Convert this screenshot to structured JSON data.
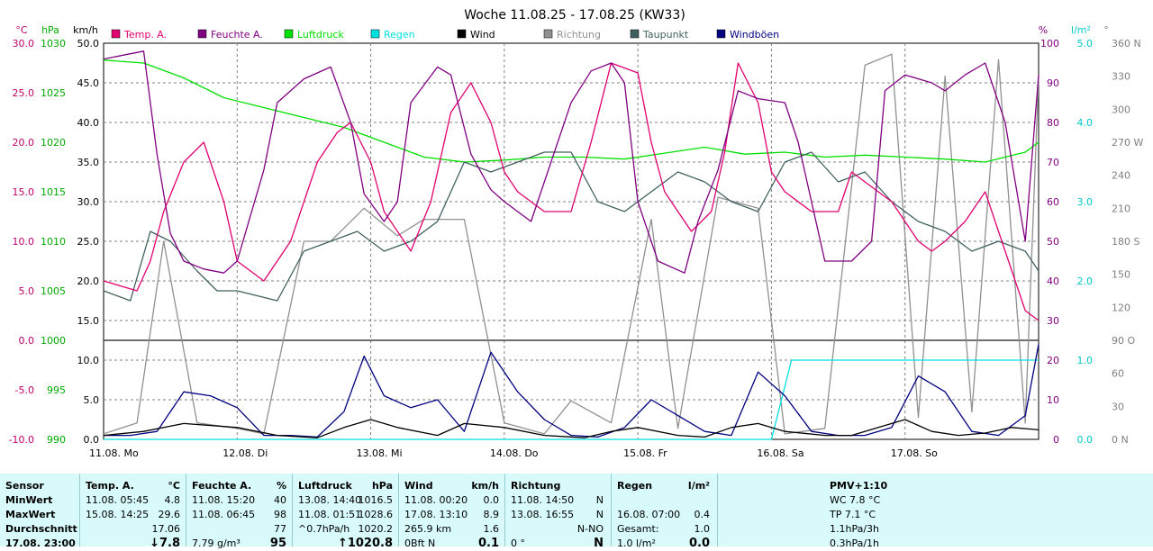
{
  "chart_data": {
    "type": "line",
    "title": "Woche 11.08.25 - 17.08.25 (KW33)",
    "x_ticks": [
      "11.08. Mo",
      "12.08. Di",
      "13.08. Mi",
      "14.08. Do",
      "15.08. Fr",
      "16.08. Sa",
      "17.08. So"
    ],
    "axes": {
      "temp": {
        "unit": "°C",
        "min": -10,
        "max": 30,
        "ticks": [
          "30.0",
          "25.0",
          "20.0",
          "15.0",
          "10.0",
          "5.0",
          "0.0",
          "-5.0",
          "-10.0"
        ],
        "color": "#c0006a"
      },
      "pressure": {
        "unit": "hPa",
        "min": 990,
        "max": 1030,
        "ticks": [
          "1030",
          "1025",
          "1020",
          "1015",
          "1010",
          "1005",
          "1000",
          "995",
          "990"
        ],
        "color": "#00aa00"
      },
      "wind": {
        "unit": "km/h",
        "min": 0,
        "max": 50,
        "ticks": [
          "50.0",
          "45.0",
          "40.0",
          "35.0",
          "30.0",
          "25.0",
          "20.0",
          "15.0",
          "10.0",
          "5.0",
          "0.0"
        ],
        "color": "#000000"
      },
      "humidity": {
        "unit": "%",
        "min": 0,
        "max": 100,
        "ticks": [
          "100",
          "90",
          "80",
          "70",
          "60",
          "50",
          "40",
          "30",
          "20",
          "10",
          "0"
        ],
        "color": "#800080"
      },
      "rain": {
        "unit": "l/m²",
        "min": 0,
        "max": 5,
        "ticks": [
          "5.0",
          "4.0",
          "3.0",
          "2.0",
          "1.0",
          "0.0"
        ],
        "color": "#00c8c8"
      },
      "direction": {
        "unit": "°",
        "min": 0,
        "max": 360,
        "ticks": [
          "360 N",
          "330",
          "300",
          "270 W",
          "240",
          "210",
          "180 S",
          "150",
          "120",
          "90 O",
          "60",
          "30",
          "0 N"
        ],
        "color": "#808080"
      }
    },
    "legend": [
      {
        "name": "Temp. A.",
        "color": "#e0006f"
      },
      {
        "name": "Feuchte A.",
        "color": "#800080"
      },
      {
        "name": "Luftdruck",
        "color": "#00e000"
      },
      {
        "name": "Regen",
        "color": "#00e0e0"
      },
      {
        "name": "Wind",
        "color": "#000000"
      },
      {
        "name": "Richtung",
        "color": "#909090"
      },
      {
        "name": "Taupunkt",
        "color": "#406060"
      },
      {
        "name": "Windböen",
        "color": "#000080"
      }
    ],
    "series": [
      {
        "name": "Temp. A.",
        "axis": "temp",
        "x": [
          0,
          0.25,
          0.35,
          0.45,
          0.6,
          0.75,
          0.9,
          1.0,
          1.2,
          1.4,
          1.6,
          1.75,
          1.85,
          2.0,
          2.1,
          2.2,
          2.3,
          2.45,
          2.6,
          2.75,
          2.9,
          3.0,
          3.1,
          3.3,
          3.5,
          3.65,
          3.8,
          4.0,
          4.1,
          4.2,
          4.4,
          4.55,
          4.65,
          4.75,
          4.9,
          5.0,
          5.1,
          5.3,
          5.5,
          5.6,
          5.7,
          5.9,
          6.1,
          6.2,
          6.3,
          6.45,
          6.6,
          6.75,
          6.9,
          7.0
        ],
        "y": [
          6,
          5,
          8,
          13,
          18,
          20,
          14,
          8,
          6,
          10,
          18,
          21,
          22,
          18,
          13,
          11,
          9,
          14,
          23,
          26,
          22,
          17,
          15,
          13,
          13,
          20,
          28,
          27,
          20,
          15,
          11,
          13,
          19,
          28,
          24,
          17,
          15,
          13,
          13,
          17,
          16,
          14,
          10,
          9,
          10,
          12,
          15,
          9,
          3,
          2
        ]
      },
      {
        "name": "Feuchte A.",
        "axis": "humidity",
        "x": [
          0,
          0.15,
          0.3,
          0.4,
          0.5,
          0.6,
          0.75,
          0.9,
          1.0,
          1.2,
          1.3,
          1.5,
          1.7,
          1.85,
          1.95,
          2.1,
          2.2,
          2.3,
          2.5,
          2.6,
          2.75,
          2.9,
          3.0,
          3.2,
          3.5,
          3.65,
          3.8,
          3.9,
          4.0,
          4.15,
          4.35,
          4.45,
          4.6,
          4.75,
          4.9,
          5.1,
          5.2,
          5.4,
          5.6,
          5.75,
          5.85,
          6.0,
          6.2,
          6.3,
          6.45,
          6.6,
          6.75,
          6.9,
          7.0
        ],
        "y": [
          96,
          97,
          98,
          72,
          52,
          45,
          43,
          42,
          45,
          68,
          85,
          91,
          94,
          80,
          62,
          55,
          60,
          85,
          94,
          92,
          72,
          63,
          60,
          55,
          85,
          93,
          95,
          90,
          60,
          45,
          42,
          55,
          68,
          88,
          86,
          85,
          75,
          45,
          45,
          50,
          88,
          92,
          90,
          88,
          92,
          95,
          80,
          50,
          92
        ]
      },
      {
        "name": "Luftdruck",
        "axis": "pressure",
        "x": [
          0,
          0.3,
          0.6,
          0.9,
          1.2,
          1.5,
          1.8,
          2.1,
          2.4,
          2.7,
          3.0,
          3.3,
          3.6,
          3.9,
          4.2,
          4.5,
          4.8,
          5.1,
          5.4,
          5.7,
          6.0,
          6.3,
          6.6,
          6.9,
          7.0
        ],
        "y": [
          1028.3,
          1028.0,
          1026.5,
          1024.5,
          1023.5,
          1022.5,
          1021.5,
          1020.0,
          1018.5,
          1018.0,
          1018.2,
          1018.5,
          1018.5,
          1018.3,
          1018.9,
          1019.5,
          1018.8,
          1019.0,
          1018.5,
          1018.7,
          1018.5,
          1018.3,
          1018.0,
          1019.0,
          1020.0
        ]
      },
      {
        "name": "Wind",
        "axis": "wind",
        "x": [
          0,
          0.3,
          0.6,
          1.0,
          1.3,
          1.6,
          1.8,
          2.0,
          2.2,
          2.5,
          2.7,
          3.0,
          3.3,
          3.6,
          3.8,
          4.0,
          4.3,
          4.5,
          4.7,
          4.9,
          5.1,
          5.4,
          5.6,
          5.8,
          6.0,
          6.2,
          6.4,
          6.6,
          6.8,
          7.0
        ],
        "y": [
          0.5,
          1.0,
          2.0,
          1.5,
          0.5,
          0.2,
          1.5,
          2.5,
          1.5,
          0.5,
          2.0,
          1.5,
          0.5,
          0.2,
          1.0,
          1.5,
          0.5,
          0.3,
          1.5,
          2.0,
          1.0,
          0.5,
          0.5,
          1.5,
          2.5,
          1.0,
          0.5,
          0.8,
          1.5,
          1.2
        ]
      },
      {
        "name": "Windböen",
        "axis": "wind",
        "x": [
          0,
          0.2,
          0.4,
          0.6,
          0.8,
          1.0,
          1.2,
          1.4,
          1.6,
          1.8,
          1.95,
          2.1,
          2.3,
          2.5,
          2.7,
          2.9,
          3.1,
          3.3,
          3.5,
          3.7,
          3.9,
          4.1,
          4.3,
          4.5,
          4.7,
          4.9,
          5.1,
          5.3,
          5.5,
          5.7,
          5.9,
          6.1,
          6.3,
          6.5,
          6.7,
          6.9,
          7.0
        ],
        "y": [
          0.5,
          0.5,
          1.0,
          6.0,
          5.5,
          4.0,
          0.5,
          0.5,
          0.3,
          3.5,
          10.5,
          5.5,
          4.0,
          5.0,
          1.0,
          11.0,
          6.0,
          2.5,
          0.5,
          0.3,
          1.5,
          5.0,
          3.0,
          1.0,
          0.5,
          8.5,
          5.5,
          1.0,
          0.5,
          0.5,
          1.5,
          8.0,
          6.0,
          1.0,
          0.5,
          3.0,
          12.0
        ]
      },
      {
        "name": "Taupunkt",
        "axis": "temp",
        "x": [
          0,
          0.2,
          0.35,
          0.5,
          0.7,
          0.85,
          1.0,
          1.3,
          1.5,
          1.7,
          1.9,
          2.1,
          2.3,
          2.5,
          2.7,
          2.9,
          3.1,
          3.3,
          3.5,
          3.7,
          3.9,
          4.1,
          4.3,
          4.5,
          4.7,
          4.9,
          5.1,
          5.3,
          5.5,
          5.7,
          5.9,
          6.1,
          6.3,
          6.5,
          6.7,
          6.9,
          7.0
        ],
        "y": [
          5,
          4,
          11,
          10,
          7,
          5,
          5,
          4,
          9,
          10,
          11,
          9,
          10,
          12,
          18,
          17,
          18,
          19,
          19,
          14,
          13,
          15,
          17,
          16,
          14,
          13,
          18,
          19,
          16,
          17,
          14,
          12,
          11,
          9,
          10,
          9,
          7
        ]
      },
      {
        "name": "Richtung",
        "axis": "direction",
        "x": [
          0,
          0.25,
          0.45,
          0.7,
          1.0,
          1.2,
          1.5,
          1.7,
          1.95,
          2.2,
          2.4,
          2.7,
          3.0,
          3.3,
          3.5,
          3.8,
          4.1,
          4.3,
          4.6,
          4.9,
          5.1,
          5.4,
          5.7,
          5.9,
          6.1,
          6.3,
          6.5,
          6.7,
          6.9,
          7.0
        ],
        "y": [
          5,
          15,
          180,
          15,
          10,
          5,
          180,
          180,
          210,
          185,
          200,
          200,
          15,
          5,
          35,
          15,
          200,
          10,
          220,
          210,
          5,
          10,
          340,
          350,
          20,
          330,
          25,
          345,
          15,
          330
        ]
      },
      {
        "name": "Regen",
        "axis": "rain",
        "x": [
          0,
          5.0,
          5.15,
          7.0
        ],
        "y": [
          0,
          0,
          1.0,
          1.0
        ]
      }
    ]
  },
  "table": {
    "sensor": {
      "header": "Sensor",
      "rows": [
        "MinWert",
        "MaxWert",
        "Durchschnitt",
        "17.08. 23:00"
      ]
    },
    "temp": {
      "header": "Temp. A.",
      "unit": "°C",
      "rows": [
        [
          "11.08.  05:45",
          "4.8"
        ],
        [
          "15.08.  14:25",
          "29.6"
        ],
        [
          "",
          "17.06"
        ],
        [
          "",
          "↓7.8"
        ]
      ]
    },
    "feuchte": {
      "header": "Feuchte A.",
      "unit": "%",
      "rows": [
        [
          "11.08.  15:20",
          "40"
        ],
        [
          "11.08.  06:45",
          "98"
        ],
        [
          "",
          "77"
        ],
        [
          "7.79 g/m³",
          "95"
        ]
      ]
    },
    "luftdruck": {
      "header": "Luftdruck",
      "unit": "hPa",
      "rows": [
        [
          "13.08.  14:40",
          "1016.5"
        ],
        [
          "11.08.  01:51",
          "1028.6"
        ],
        [
          "^0.7hPa/h",
          "1020.2"
        ],
        [
          "",
          "↑1020.8"
        ]
      ]
    },
    "wind": {
      "header": "Wind",
      "unit": "km/h",
      "rows": [
        [
          "11.08.  00:20",
          "0.0"
        ],
        [
          "17.08.  13:10",
          "8.9"
        ],
        [
          "265.9 km",
          "1.6"
        ],
        [
          "0Bft N",
          "0.1"
        ]
      ]
    },
    "richtung": {
      "header": "Richtung",
      "rows": [
        [
          "11.08.  14:50",
          "N"
        ],
        [
          "13.08.  16:55",
          "N"
        ],
        [
          "",
          "N-NO"
        ],
        [
          "0 °",
          "N"
        ]
      ]
    },
    "regen": {
      "header": "Regen",
      "unit": "l/m²",
      "rows": [
        [
          "",
          ""
        ],
        [
          "16.08.  07:00",
          "0.4"
        ],
        [
          "Gesamt:",
          "1.0"
        ],
        [
          "1.0 l/m²",
          "0.0"
        ]
      ]
    },
    "pmv": {
      "header": "PMV+1:10",
      "rows": [
        "WC 7.8 °C",
        "TP 7.1 °C",
        "1.1hPa/3h",
        "0.3hPa/1h"
      ]
    }
  }
}
